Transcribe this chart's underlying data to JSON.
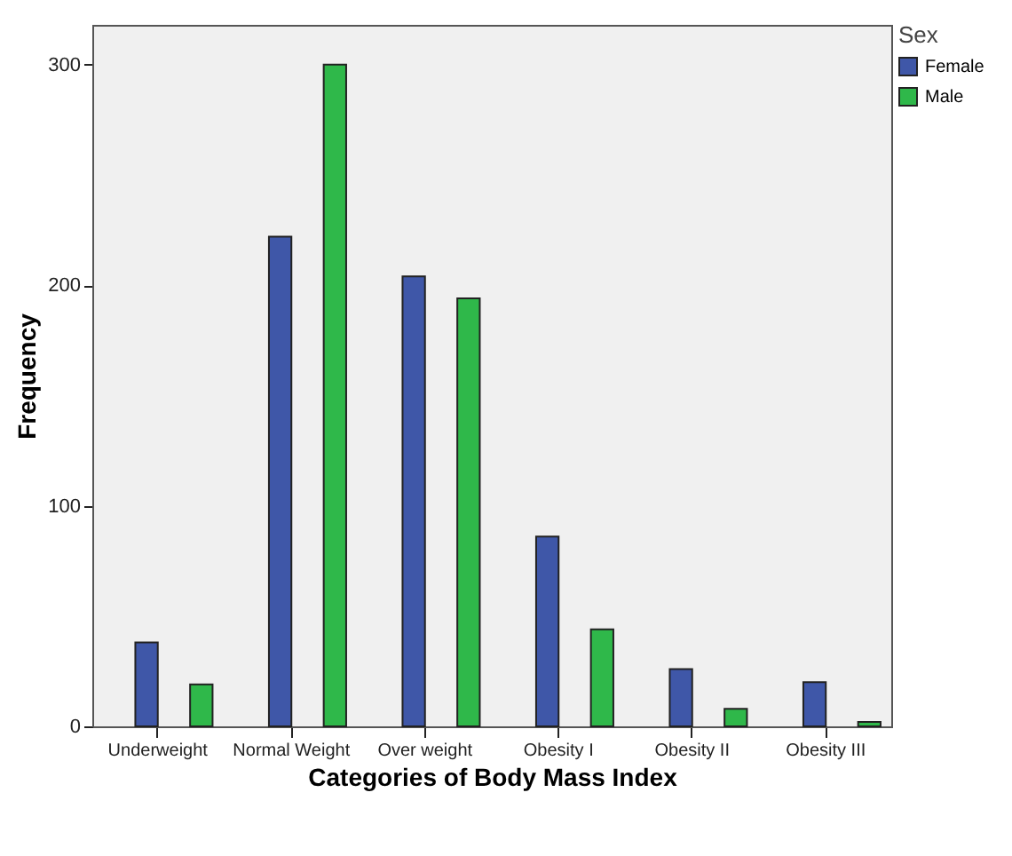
{
  "chart_data": {
    "type": "bar",
    "xlabel": "Categories of Body Mass Index",
    "ylabel": "Frequency",
    "legend_title": "Sex",
    "legend": "top right",
    "grid": false,
    "categories": [
      "Underweight",
      "Normal Weight",
      "Over weight",
      "Obesity I",
      "Obesity II",
      "Obesity III"
    ],
    "ylim": [
      0,
      318
    ],
    "yticks": [
      0,
      100,
      200,
      300
    ],
    "series": [
      {
        "name": "Female",
        "color": "#3f57a8",
        "values": [
          38,
          222,
          204,
          86,
          26,
          20
        ]
      },
      {
        "name": "Male",
        "color": "#2fb84a",
        "values": [
          19,
          300,
          194,
          44,
          8,
          2
        ]
      }
    ]
  }
}
